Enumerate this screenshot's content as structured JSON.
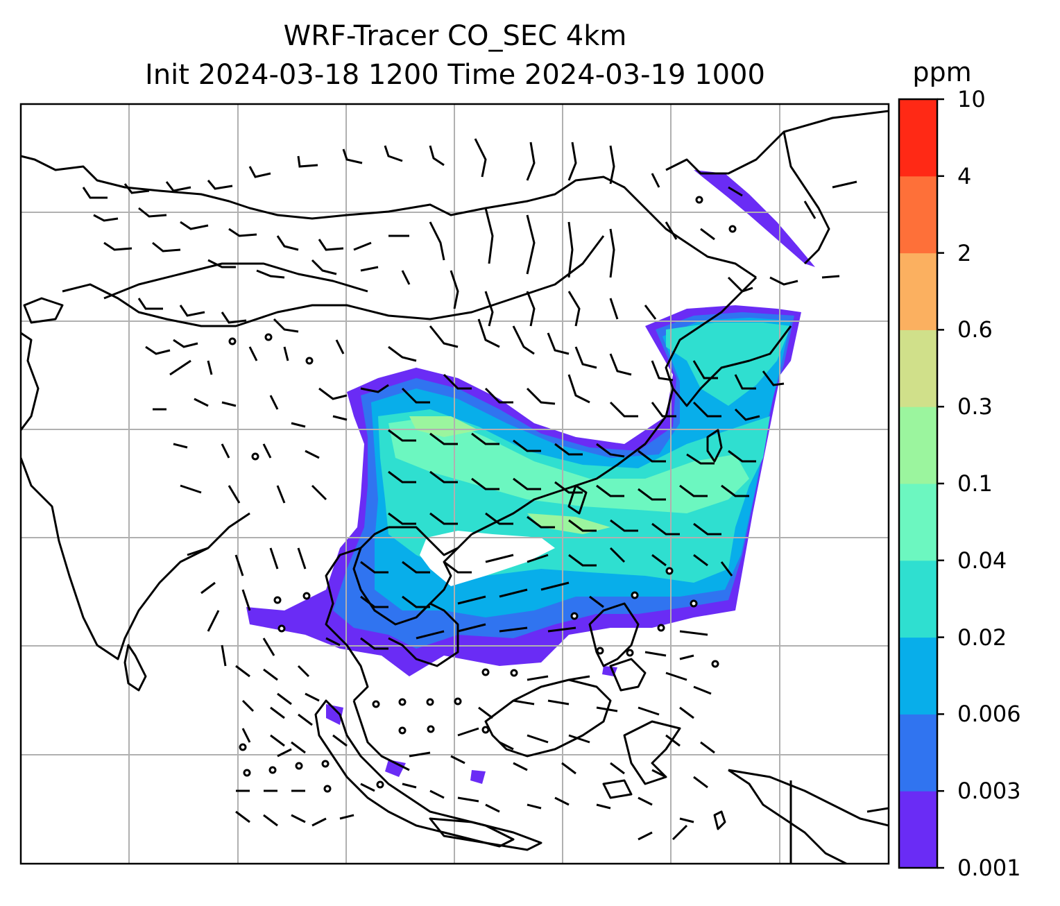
{
  "title": {
    "line1": "WRF-Tracer CO_SEC 4km",
    "line2": "Init 2024-03-18 1200 Time 2024-03-19 1000"
  },
  "colorbar": {
    "unit": "ppm",
    "ticks": [
      "0.001",
      "0.003",
      "0.006",
      "0.02",
      "0.04",
      "0.1",
      "0.3",
      "0.6",
      "2",
      "4",
      "10"
    ],
    "colors": [
      "#6a2cf5",
      "#3074f0",
      "#08aeea",
      "#2fdfd0",
      "#6cf7c0",
      "#9bf59e",
      "#d0e08a",
      "#fbb060",
      "#fe7039",
      "#ff2915"
    ]
  },
  "map": {
    "gridlines": true,
    "features": [
      "coastlines",
      "country-borders",
      "wind-barbs",
      "co-tracer-plume"
    ],
    "coastline_color": "#000000",
    "grid_color": "#b0b0b0"
  }
}
